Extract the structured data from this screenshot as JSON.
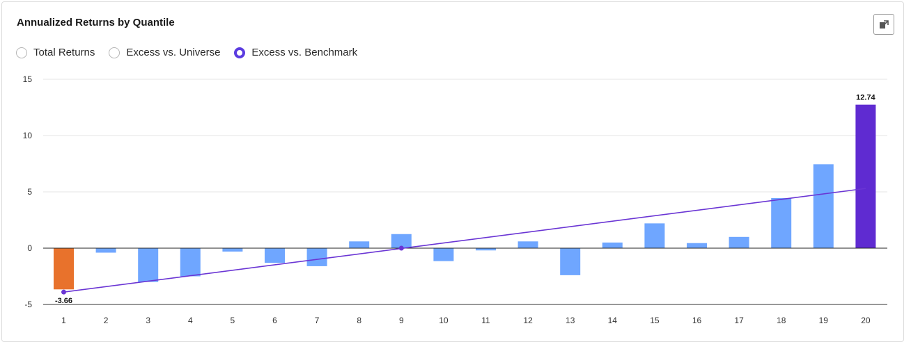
{
  "panel": {
    "title": "Annualized Returns by Quantile",
    "export_icon": "export-icon"
  },
  "radio_options": [
    {
      "label": "Total Returns",
      "selected": false
    },
    {
      "label": "Excess vs. Universe",
      "selected": false
    },
    {
      "label": "Excess vs. Benchmark",
      "selected": true
    }
  ],
  "colors": {
    "default_bar": "#6fa6ff",
    "bottom_bar": "#e8722c",
    "top_bar": "#5f2bd1",
    "trend_line": "#6a35d4",
    "accent": "#5b3ce0"
  },
  "chart_data": {
    "type": "bar",
    "categories": [
      "1",
      "2",
      "3",
      "4",
      "5",
      "6",
      "7",
      "8",
      "9",
      "10",
      "11",
      "12",
      "13",
      "14",
      "15",
      "16",
      "17",
      "18",
      "19",
      "20"
    ],
    "values": [
      -3.66,
      -0.4,
      -3.0,
      -2.5,
      -0.3,
      -1.3,
      -1.6,
      0.6,
      1.25,
      -1.15,
      -0.2,
      0.6,
      -2.4,
      0.5,
      2.2,
      0.45,
      1.0,
      4.45,
      7.45,
      12.74
    ],
    "data_labels": [
      {
        "index": 0,
        "text": "-3.66"
      },
      {
        "index": 19,
        "text": "12.74"
      }
    ],
    "trend_line": {
      "start": {
        "x": "1",
        "y": -3.9
      },
      "mid": {
        "x": "9",
        "y": 0.0
      },
      "end": {
        "x": "20",
        "y": 5.3
      }
    },
    "ylim": [
      -5,
      15
    ],
    "yticks": [
      -5,
      0,
      5,
      10,
      15
    ],
    "grid": true,
    "title": "",
    "xlabel": "",
    "ylabel": ""
  }
}
